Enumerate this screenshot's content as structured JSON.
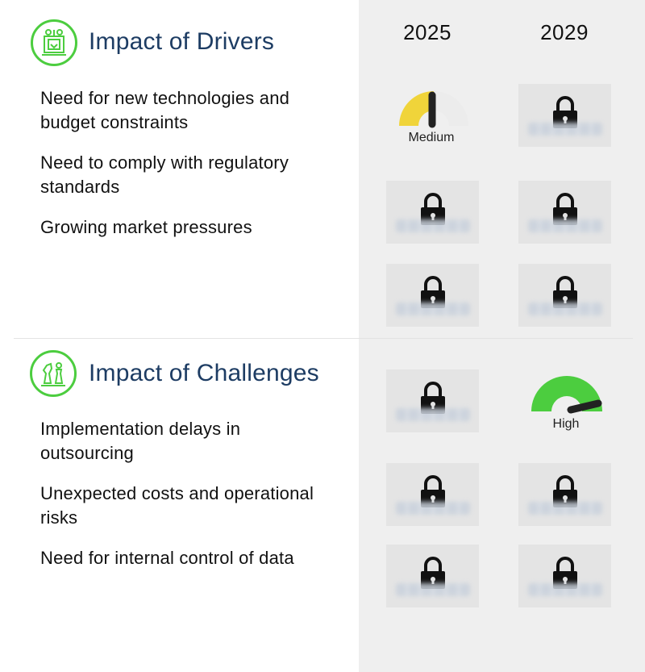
{
  "years": [
    "2025",
    "2029"
  ],
  "drivers": {
    "title": "Impact of Drivers",
    "items": [
      "Need for new technologies and budget constraints",
      "Need to comply with regulatory standards",
      "Growing market pressures"
    ],
    "gauge_2025_label": "Medium"
  },
  "challenges": {
    "title": "Impact of Challenges",
    "items": [
      "Implementation delays in outsourcing",
      "Unexpected costs and operational risks",
      "Need for internal control of data"
    ],
    "gauge_2029_label": "High"
  },
  "colors": {
    "accent_green": "#4ccd3f",
    "title_navy": "#1d3c63",
    "medium_yellow": "#f0d43a",
    "high_green": "#4ccd3f"
  },
  "icons": {
    "drivers": "machine-icon",
    "challenges": "chess-icon",
    "locked": "padlock-icon"
  }
}
